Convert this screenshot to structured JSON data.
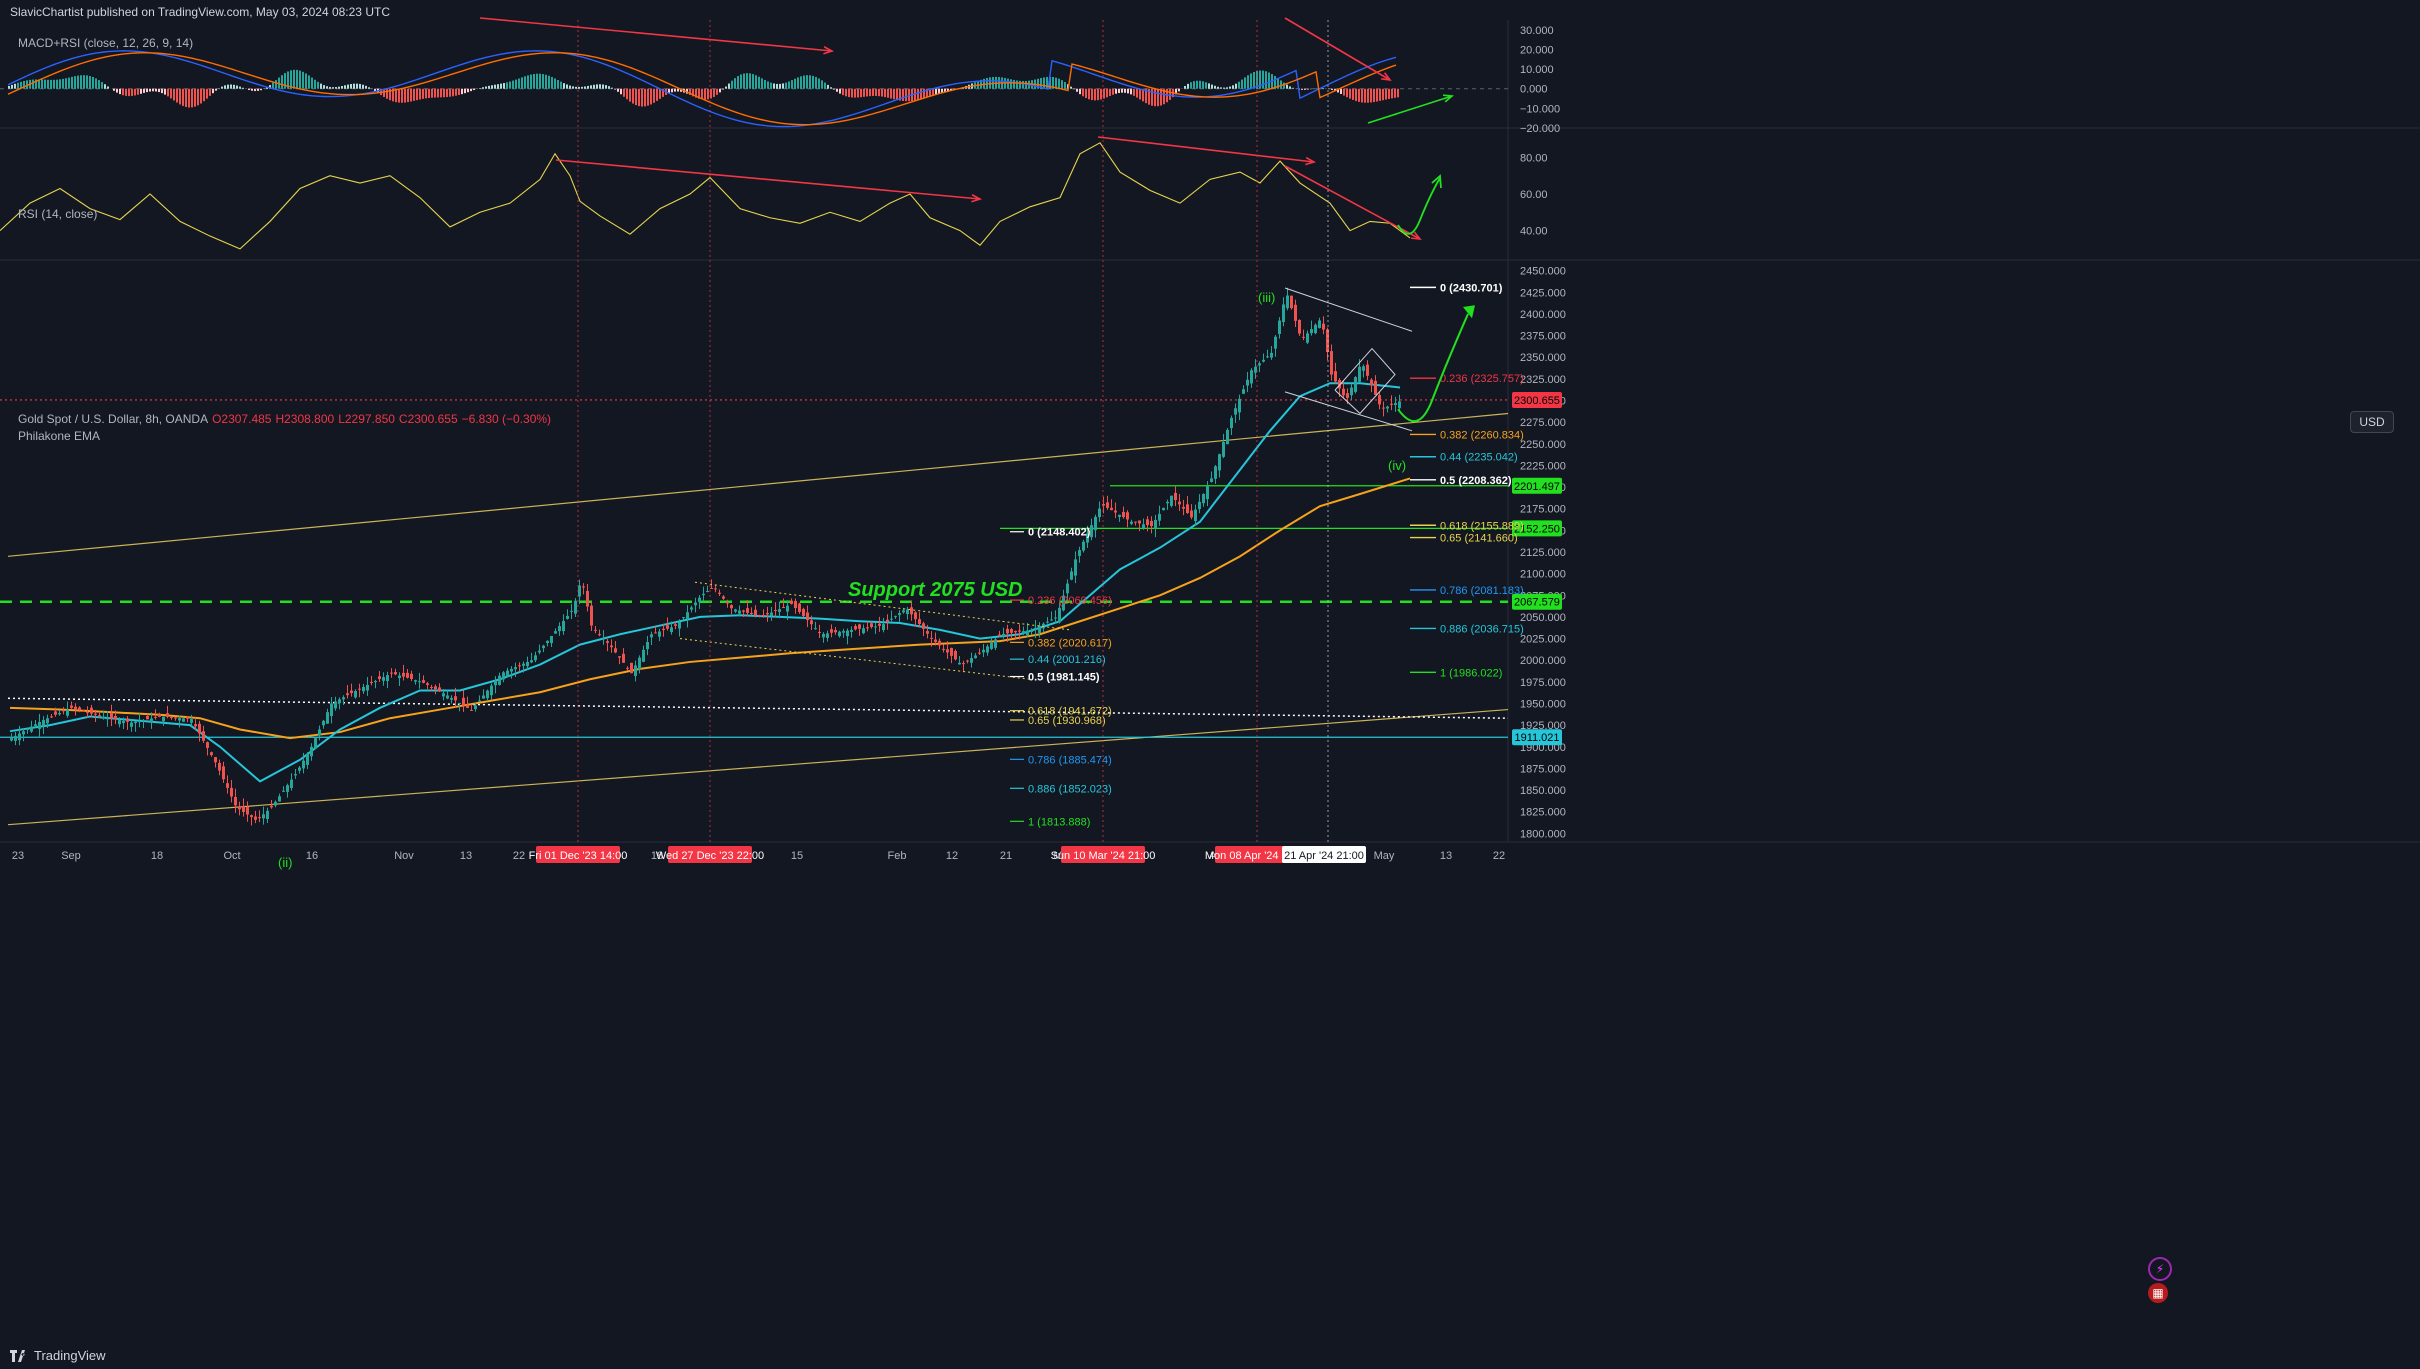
{
  "header": {
    "text": "SlavicChartist published on TradingView.com, May 03, 2024 08:23 UTC"
  },
  "panes": {
    "macd_label": "MACD+RSI (close, 12, 26, 9, 14)",
    "rsi_label": "RSI (14, close)",
    "price_label_1": "Gold Spot / U.S. Dollar, 8h, OANDA",
    "ohlc": {
      "open": "O2307.485",
      "high": "H2308.800",
      "low": "L2297.850",
      "close": "C2300.655",
      "change": "−6.830 (−0.30%)"
    },
    "price_label_2": "Philakone EMA"
  },
  "usd_label": "USD",
  "footer": {
    "brand": "TradingView"
  },
  "colors": {
    "bg": "#131722",
    "grid": "#2a2e39",
    "text": "#b2b5be",
    "up": "#26a69a",
    "down": "#ef5350",
    "ema_fast": "#26c6da",
    "ema_slow": "#f7a21b",
    "rsi": "#e8d44d",
    "macd": "#2962ff",
    "signal": "#ff6d00",
    "red_arrow": "#f23645",
    "green_arrow": "#22e01f",
    "trend": "#c9b458"
  },
  "chart_data": [
    {
      "type": "bar",
      "title": "MACD+RSI (close, 12, 26, 9, 14)",
      "ylim": [
        -20,
        35
      ],
      "y_ticks": [
        "30.000",
        "20.000",
        "10.000",
        "0.000",
        "−10.000",
        "−20.000"
      ],
      "y_tick_values": [
        30,
        20,
        10,
        0,
        -10,
        -20
      ]
    },
    {
      "type": "line",
      "title": "RSI (14, close)",
      "ylim": [
        25,
        95
      ],
      "y_ticks": [
        "80.00",
        "60.00",
        "40.00"
      ],
      "y_tick_values": [
        80,
        60,
        40
      ],
      "rsi_points": [
        [
          0,
          40
        ],
        [
          30,
          55
        ],
        [
          60,
          63
        ],
        [
          90,
          52
        ],
        [
          120,
          46
        ],
        [
          150,
          60
        ],
        [
          180,
          45
        ],
        [
          210,
          37
        ],
        [
          240,
          30
        ],
        [
          270,
          45
        ],
        [
          300,
          63
        ],
        [
          330,
          70
        ],
        [
          360,
          66
        ],
        [
          390,
          70
        ],
        [
          420,
          58
        ],
        [
          450,
          42
        ],
        [
          480,
          50
        ],
        [
          510,
          55
        ],
        [
          540,
          68
        ],
        [
          555,
          82
        ],
        [
          570,
          70
        ],
        [
          580,
          56
        ],
        [
          600,
          48
        ],
        [
          630,
          38
        ],
        [
          660,
          52
        ],
        [
          690,
          60
        ],
        [
          710,
          69
        ],
        [
          740,
          52
        ],
        [
          770,
          47
        ],
        [
          800,
          44
        ],
        [
          830,
          50
        ],
        [
          860,
          45
        ],
        [
          890,
          55
        ],
        [
          910,
          60
        ],
        [
          930,
          47
        ],
        [
          960,
          40
        ],
        [
          980,
          32
        ],
        [
          1000,
          45
        ],
        [
          1030,
          53
        ],
        [
          1060,
          58
        ],
        [
          1080,
          82
        ],
        [
          1100,
          88
        ],
        [
          1120,
          72
        ],
        [
          1150,
          62
        ],
        [
          1180,
          55
        ],
        [
          1210,
          68
        ],
        [
          1240,
          72
        ],
        [
          1260,
          66
        ],
        [
          1280,
          78
        ],
        [
          1300,
          66
        ],
        [
          1330,
          55
        ],
        [
          1350,
          40
        ],
        [
          1370,
          45
        ],
        [
          1390,
          44
        ],
        [
          1410,
          36
        ]
      ]
    },
    {
      "type": "candlestick",
      "title": "Gold Spot / U.S. Dollar, 8h, OANDA",
      "ylim": [
        1790,
        2460
      ],
      "y_ticks": [
        "2450.000",
        "2425.000",
        "2400.000",
        "2375.000",
        "2350.000",
        "2325.000",
        "2300.000",
        "2275.000",
        "2250.000",
        "2225.000",
        "2200.000",
        "2175.000",
        "2150.000",
        "2125.000",
        "2100.000",
        "2075.000",
        "2050.000",
        "2025.000",
        "2000.000",
        "1975.000",
        "1950.000",
        "1925.000",
        "1900.000",
        "1875.000",
        "1850.000",
        "1825.000",
        "1800.000"
      ],
      "y_tick_values": [
        2450,
        2425,
        2400,
        2375,
        2350,
        2325,
        2300,
        2275,
        2250,
        2225,
        2200,
        2175,
        2150,
        2125,
        2100,
        2075,
        2050,
        2025,
        2000,
        1975,
        1950,
        1925,
        1900,
        1875,
        1850,
        1825,
        1800
      ],
      "x_ticks": [
        "23",
        "Sep",
        "18",
        "Oct",
        "16",
        "Nov",
        "13",
        "22",
        "18",
        "15",
        "Feb",
        "12",
        "21",
        "M",
        "A",
        "May",
        "13",
        "22"
      ],
      "x_tick_positions": [
        18,
        71,
        157,
        232,
        312,
        404,
        466,
        519,
        657,
        797,
        897,
        952,
        1006,
        1058,
        1213,
        1384,
        1446,
        1499
      ],
      "highlight_dates": [
        "Fri 01 Dec '23   14:00",
        "Wed 27 Dec '23   22:00",
        "Sun 10 Mar '24   21:00",
        "Mon 08 Apr '24   21:00",
        "21 Apr '24   21:00"
      ],
      "highlight_positions": [
        578,
        710,
        1103,
        1257,
        1328
      ],
      "price_path": [
        [
          10,
          1910
        ],
        [
          40,
          1930
        ],
        [
          70,
          1945
        ],
        [
          100,
          1935
        ],
        [
          130,
          1928
        ],
        [
          160,
          1935
        ],
        [
          190,
          1932
        ],
        [
          215,
          1880
        ],
        [
          235,
          1830
        ],
        [
          255,
          1815
        ],
        [
          270,
          1830
        ],
        [
          295,
          1870
        ],
        [
          310,
          1900
        ],
        [
          330,
          1950
        ],
        [
          360,
          1968
        ],
        [
          390,
          1985
        ],
        [
          420,
          1975
        ],
        [
          445,
          1960
        ],
        [
          470,
          1942
        ],
        [
          500,
          1985
        ],
        [
          530,
          2000
        ],
        [
          555,
          2035
        ],
        [
          572,
          2060
        ],
        [
          580,
          2095
        ],
        [
          590,
          2040
        ],
        [
          610,
          2015
        ],
        [
          630,
          1985
        ],
        [
          650,
          2030
        ],
        [
          675,
          2040
        ],
        [
          700,
          2075
        ],
        [
          712,
          2085
        ],
        [
          730,
          2060
        ],
        [
          760,
          2050
        ],
        [
          790,
          2065
        ],
        [
          820,
          2030
        ],
        [
          850,
          2035
        ],
        [
          880,
          2040
        ],
        [
          905,
          2060
        ],
        [
          930,
          2025
        ],
        [
          960,
          1995
        ],
        [
          980,
          2010
        ],
        [
          1000,
          2030
        ],
        [
          1030,
          2035
        ],
        [
          1055,
          2050
        ],
        [
          1075,
          2120
        ],
        [
          1100,
          2180
        ],
        [
          1130,
          2160
        ],
        [
          1150,
          2155
        ],
        [
          1170,
          2190
        ],
        [
          1190,
          2165
        ],
        [
          1210,
          2210
        ],
        [
          1230,
          2280
        ],
        [
          1250,
          2335
        ],
        [
          1270,
          2355
        ],
        [
          1285,
          2425
        ],
        [
          1300,
          2370
        ],
        [
          1320,
          2395
        ],
        [
          1330,
          2330
        ],
        [
          1345,
          2300
        ],
        [
          1360,
          2345
        ],
        [
          1380,
          2290
        ],
        [
          1400,
          2300
        ]
      ],
      "ema_fast_path": [
        [
          10,
          1918
        ],
        [
          50,
          1925
        ],
        [
          90,
          1935
        ],
        [
          140,
          1930
        ],
        [
          190,
          1925
        ],
        [
          220,
          1900
        ],
        [
          260,
          1860
        ],
        [
          300,
          1885
        ],
        [
          340,
          1920
        ],
        [
          380,
          1945
        ],
        [
          420,
          1965
        ],
        [
          460,
          1965
        ],
        [
          500,
          1978
        ],
        [
          540,
          1995
        ],
        [
          580,
          2018
        ],
        [
          620,
          2030
        ],
        [
          660,
          2040
        ],
        [
          700,
          2050
        ],
        [
          740,
          2052
        ],
        [
          780,
          2050
        ],
        [
          820,
          2048
        ],
        [
          860,
          2045
        ],
        [
          900,
          2043
        ],
        [
          940,
          2035
        ],
        [
          980,
          2025
        ],
        [
          1020,
          2030
        ],
        [
          1060,
          2045
        ],
        [
          1090,
          2075
        ],
        [
          1120,
          2105
        ],
        [
          1160,
          2130
        ],
        [
          1200,
          2160
        ],
        [
          1240,
          2220
        ],
        [
          1270,
          2265
        ],
        [
          1300,
          2305
        ],
        [
          1330,
          2320
        ],
        [
          1360,
          2320
        ],
        [
          1400,
          2315
        ]
      ],
      "ema_slow_path": [
        [
          10,
          1945
        ],
        [
          60,
          1943
        ],
        [
          110,
          1940
        ],
        [
          160,
          1937
        ],
        [
          200,
          1933
        ],
        [
          240,
          1920
        ],
        [
          290,
          1910
        ],
        [
          340,
          1917
        ],
        [
          390,
          1933
        ],
        [
          440,
          1943
        ],
        [
          490,
          1953
        ],
        [
          540,
          1963
        ],
        [
          590,
          1978
        ],
        [
          640,
          1990
        ],
        [
          690,
          1998
        ],
        [
          740,
          2003
        ],
        [
          790,
          2008
        ],
        [
          840,
          2012
        ],
        [
          880,
          2015
        ],
        [
          920,
          2018
        ],
        [
          960,
          2020
        ],
        [
          1000,
          2022
        ],
        [
          1040,
          2030
        ],
        [
          1080,
          2045
        ],
        [
          1120,
          2060
        ],
        [
          1160,
          2075
        ],
        [
          1200,
          2095
        ],
        [
          1240,
          2120
        ],
        [
          1280,
          2150
        ],
        [
          1320,
          2178
        ],
        [
          1360,
          2192
        ],
        [
          1410,
          2210
        ]
      ],
      "horizontal_levels": [
        {
          "price": 2300.655,
          "label": "2300.655",
          "color": "#f23645"
        },
        {
          "price": 2201.497,
          "label": "2201.497",
          "color": "#22e01f"
        },
        {
          "price": 2152.25,
          "label": "2152.250",
          "color": "#22e01f"
        },
        {
          "price": 2067.579,
          "label": "2067.579",
          "color": "#22e01f"
        },
        {
          "price": 1911.021,
          "label": "1911.021",
          "color": "#26c6da"
        }
      ],
      "fib_upper": [
        {
          "text": "0 (2430.701)",
          "price": 2430.701,
          "color": "#ffffff"
        },
        {
          "text": "0.236 (2325.757)",
          "price": 2325.757,
          "color": "#f23645"
        },
        {
          "text": "0.382 (2260.834)",
          "price": 2260.834,
          "color": "#f7a21b"
        },
        {
          "text": "0.44 (2235.042)",
          "price": 2235.042,
          "color": "#26c6da"
        },
        {
          "text": "0.5 (2208.362)",
          "price": 2208.362,
          "color": "#ffffff"
        },
        {
          "text": "0.618 (2155.889)",
          "price": 2155.889,
          "color": "#e8d44d"
        },
        {
          "text": "0.65 (2141.660)",
          "price": 2141.66,
          "color": "#e8d44d"
        },
        {
          "text": "0.786 (2081.183)",
          "price": 2081.183,
          "color": "#2196f3"
        },
        {
          "text": "0.886 (2036.715)",
          "price": 2036.715,
          "color": "#26c6da"
        },
        {
          "text": "1 (1986.022)",
          "price": 1986.022,
          "color": "#22e01f"
        }
      ],
      "fib_lower": [
        {
          "text": "0 (2148.402)",
          "price": 2148.402,
          "color": "#ffffff"
        },
        {
          "text": "0.236 (2069.456)",
          "price": 2069.456,
          "color": "#f23645"
        },
        {
          "text": "0.382 (2020.617)",
          "price": 2020.617,
          "color": "#f7a21b"
        },
        {
          "text": "0.44 (2001.216)",
          "price": 2001.216,
          "color": "#26c6da"
        },
        {
          "text": "0.5 (1981.145)",
          "price": 1981.145,
          "color": "#ffffff"
        },
        {
          "text": "0.618 (1941.672)",
          "price": 1941.672,
          "color": "#e8d44d"
        },
        {
          "text": "0.65 (1930.968)",
          "price": 1930.968,
          "color": "#e8d44d"
        },
        {
          "text": "0.786 (1885.474)",
          "price": 1885.474,
          "color": "#2196f3"
        },
        {
          "text": "0.886 (1852.023)",
          "price": 1852.023,
          "color": "#26c6da"
        },
        {
          "text": "1 (1813.888)",
          "price": 1813.888,
          "color": "#22e01f"
        }
      ],
      "annotations": [
        {
          "text": "Support 2075 USD",
          "color": "#22e01f"
        },
        {
          "text": "(iii)",
          "color": "#22e01f"
        },
        {
          "text": "(iv)",
          "color": "#22e01f"
        },
        {
          "text": "(ii)",
          "color": "#22e01f"
        }
      ]
    }
  ]
}
